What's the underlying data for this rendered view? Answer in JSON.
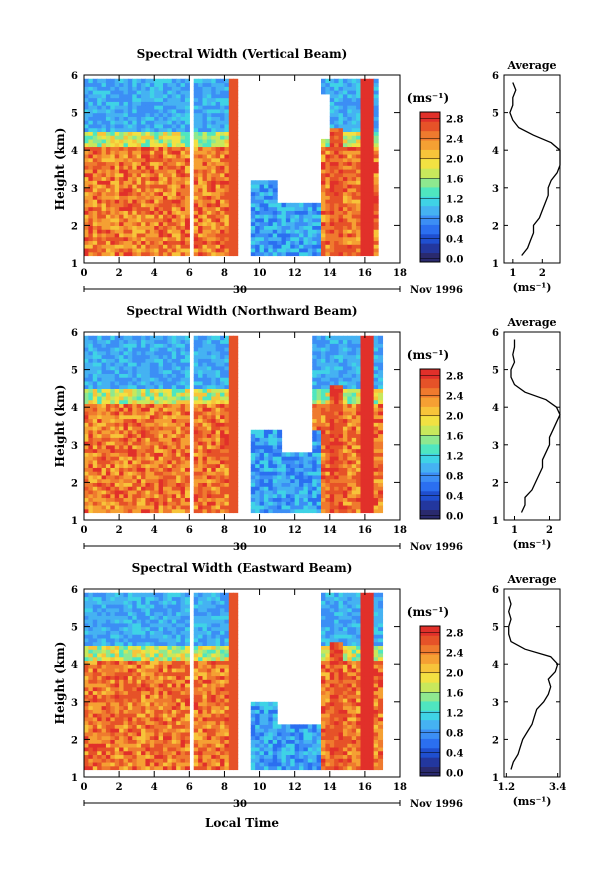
{
  "figure": {
    "xlabel": "Local Time",
    "date_label": "Nov 1996",
    "day_label": "30"
  },
  "colorbar": {
    "unit": "(ms⁻¹)",
    "colors": [
      "#2a2a6e",
      "#23379e",
      "#1f4fd0",
      "#2b6ff0",
      "#3c8ef5",
      "#45b2f2",
      "#3fd3e6",
      "#4fe6c0",
      "#8ee88f",
      "#c8e85c",
      "#f2e142",
      "#f7c43a",
      "#f5a033",
      "#ef7a2e",
      "#e65228",
      "#e1302a"
    ]
  },
  "chart_data": [
    {
      "type": "heatmap",
      "title": "Spectral Width (Vertical Beam)",
      "ylabel": "Height (km)",
      "xlim": [
        0,
        18
      ],
      "ylim": [
        1,
        6
      ],
      "xticks": [
        0,
        2,
        4,
        6,
        8,
        10,
        12,
        14,
        16,
        18
      ],
      "yticks": [
        1,
        2,
        3,
        4,
        5,
        6
      ],
      "colorbar_ticks": [
        "0.0",
        "0.4",
        "0.8",
        "1.2",
        "1.6",
        "2.0",
        "2.4",
        "2.8"
      ],
      "colorbar_range": [
        0,
        3.0
      ],
      "profile": {
        "title": "Average",
        "xlabel": "(ms⁻¹)",
        "xticks": [
          "1",
          "2"
        ],
        "xlim": [
          0.7,
          2.6
        ],
        "heights": [
          1.2,
          1.4,
          1.6,
          1.8,
          2.0,
          2.2,
          2.4,
          2.6,
          2.8,
          3.0,
          3.2,
          3.4,
          3.6,
          3.8,
          4.0,
          4.2,
          4.4,
          4.6,
          4.8,
          5.0,
          5.2,
          5.4,
          5.6,
          5.8
        ],
        "values": [
          1.3,
          1.5,
          1.6,
          1.7,
          1.7,
          1.9,
          2.0,
          2.1,
          2.2,
          2.2,
          2.3,
          2.5,
          2.6,
          2.6,
          2.6,
          2.3,
          1.7,
          1.2,
          1.0,
          0.9,
          1.0,
          1.0,
          1.1,
          1.0
        ]
      }
    },
    {
      "type": "heatmap",
      "title": "Spectral Width (Northward Beam)",
      "ylabel": "Height (km)",
      "xlim": [
        0,
        18
      ],
      "ylim": [
        1,
        6
      ],
      "xticks": [
        0,
        2,
        4,
        6,
        8,
        10,
        12,
        14,
        16,
        18
      ],
      "yticks": [
        1,
        2,
        3,
        4,
        5,
        6
      ],
      "colorbar_ticks": [
        "0.0",
        "0.4",
        "0.8",
        "1.2",
        "1.6",
        "2.0",
        "2.4",
        "2.8"
      ],
      "colorbar_range": [
        0,
        3.0
      ],
      "profile": {
        "title": "Average",
        "xlabel": "(ms⁻¹)",
        "xticks": [
          "1",
          "2"
        ],
        "xlim": [
          0.7,
          2.3
        ],
        "heights": [
          1.2,
          1.4,
          1.6,
          1.8,
          2.0,
          2.2,
          2.4,
          2.6,
          2.8,
          3.0,
          3.2,
          3.4,
          3.6,
          3.8,
          4.0,
          4.2,
          4.4,
          4.6,
          4.8,
          5.0,
          5.2,
          5.4,
          5.6,
          5.8
        ],
        "values": [
          1.2,
          1.3,
          1.3,
          1.5,
          1.6,
          1.7,
          1.8,
          1.8,
          1.9,
          2.0,
          2.0,
          2.1,
          2.2,
          2.3,
          2.2,
          1.9,
          1.3,
          1.0,
          0.9,
          0.9,
          1.0,
          0.95,
          1.0,
          1.0
        ]
      }
    },
    {
      "type": "heatmap",
      "title": "Spectral Width (Eastward Beam)",
      "ylabel": "Height (km)",
      "xlim": [
        0,
        18
      ],
      "ylim": [
        1,
        6
      ],
      "xticks": [
        0,
        2,
        4,
        6,
        8,
        10,
        12,
        14,
        16,
        18
      ],
      "yticks": [
        1,
        2,
        3,
        4,
        5,
        6
      ],
      "colorbar_ticks": [
        "0.0",
        "0.4",
        "0.8",
        "1.2",
        "1.6",
        "2.0",
        "2.4",
        "2.8"
      ],
      "colorbar_range": [
        0,
        3.0
      ],
      "profile": {
        "title": "Average",
        "xlabel": "(ms⁻¹)",
        "xticks": [
          "1.2",
          "3.4"
        ],
        "xlim": [
          1.1,
          3.5
        ],
        "heights": [
          1.2,
          1.4,
          1.6,
          1.8,
          2.0,
          2.2,
          2.4,
          2.6,
          2.8,
          3.0,
          3.2,
          3.4,
          3.6,
          3.8,
          4.0,
          4.2,
          4.4,
          4.6,
          4.8,
          5.0,
          5.2,
          5.4,
          5.6,
          5.8
        ],
        "values": [
          1.4,
          1.5,
          1.7,
          1.8,
          1.9,
          2.1,
          2.3,
          2.4,
          2.5,
          2.8,
          3.0,
          3.1,
          3.0,
          3.3,
          3.4,
          3.1,
          2.0,
          1.4,
          1.3,
          1.3,
          1.4,
          1.3,
          1.4,
          1.3
        ]
      }
    }
  ]
}
